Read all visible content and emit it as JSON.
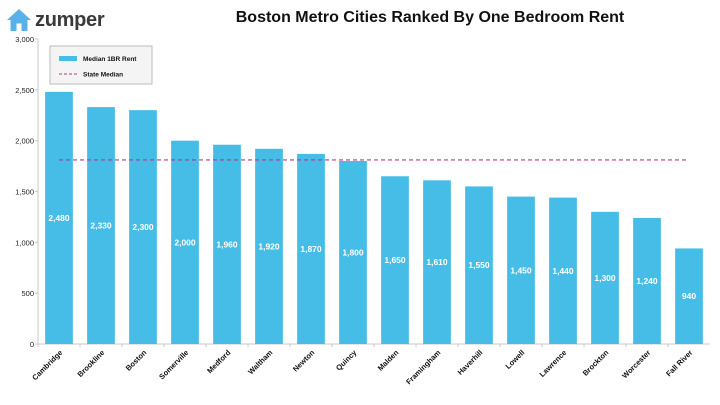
{
  "brand": {
    "name": "zumper",
    "icon": "house-icon",
    "color": "#3a3a3a",
    "accent": "#5ab0e8"
  },
  "chart_data": {
    "type": "bar",
    "title": "Boston Metro Cities Ranked By One Bedroom Rent",
    "categories": [
      "Cambridge",
      "Brookline",
      "Boston",
      "Somerville",
      "Medford",
      "Waltham",
      "Newton",
      "Quincy",
      "Malden",
      "Framingham",
      "Haverhill",
      "Lowell",
      "Lawrence",
      "Brockton",
      "Worcester",
      "Fall River"
    ],
    "series": [
      {
        "name": "Median 1BR Rent",
        "values": [
          2480,
          2330,
          2300,
          2000,
          1960,
          1920,
          1870,
          1800,
          1650,
          1610,
          1550,
          1450,
          1440,
          1300,
          1240,
          940
        ],
        "labels": [
          "2,480",
          "2,330",
          "2,300",
          "2,000",
          "1,960",
          "1,920",
          "1,870",
          "1,800",
          "1,650",
          "1,610",
          "1,550",
          "1,450",
          "1,440",
          "1,300",
          "1,240",
          "940"
        ],
        "color": "#45bde6"
      },
      {
        "name": "State Median",
        "type": "line",
        "value": 1810,
        "color": "#b03a88",
        "style": "dashed"
      }
    ],
    "ylim": [
      0,
      3000
    ],
    "yticks": [
      0,
      500,
      1000,
      1500,
      2000,
      2500,
      3000
    ],
    "ytick_labels": [
      "0",
      "500",
      "1,000",
      "1,500",
      "2,000",
      "2,500",
      "3,000"
    ],
    "grid": false,
    "legend": "top-left"
  }
}
